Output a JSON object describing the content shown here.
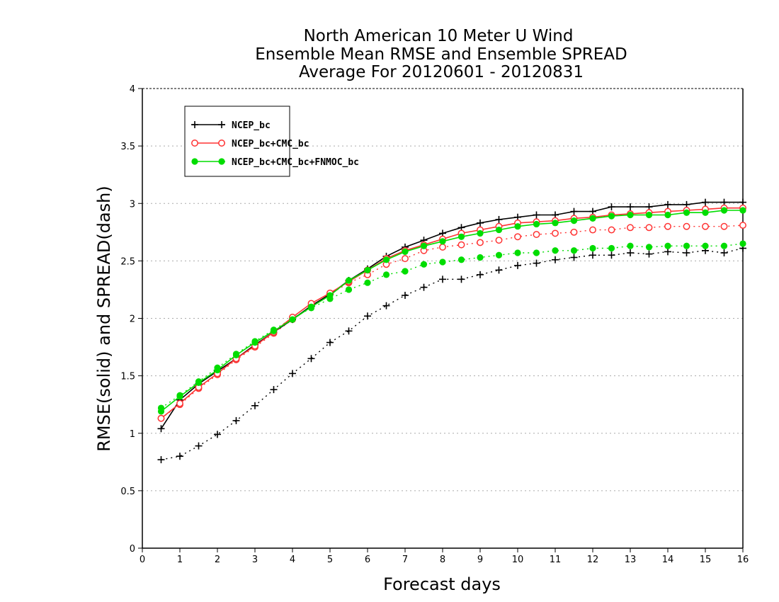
{
  "chart_data": {
    "type": "line",
    "title": {
      "line1": "North American 10 Meter U Wind",
      "line2": "Ensemble Mean RMSE and Ensemble SPREAD",
      "line3": "Average For 20120601 - 20120831"
    },
    "xlabel": "Forecast days",
    "ylabel": "RMSE(solid) and SPREAD(dash)",
    "xlim": [
      0,
      16
    ],
    "ylim": [
      0,
      4
    ],
    "xticks": [
      "0",
      "1",
      "2",
      "3",
      "4",
      "5",
      "6",
      "7",
      "8",
      "9",
      "10",
      "11",
      "12",
      "13",
      "14",
      "15",
      "16"
    ],
    "yticks": [
      "0",
      "0.5",
      "1",
      "1.5",
      "2",
      "2.5",
      "3",
      "3.5",
      "4"
    ],
    "grid": "horizontal dotted",
    "legend_placement": "top-left",
    "legend": [
      "NCEP_bc",
      "NCEP_bc+CMC_bc",
      "NCEP_bc+CMC_bc+FNMOC_bc"
    ],
    "x": [
      0.5,
      1,
      1.5,
      2,
      2.5,
      3,
      3.5,
      4,
      4.5,
      5,
      5.5,
      6,
      6.5,
      7,
      7.5,
      8,
      8.5,
      9,
      9.5,
      10,
      10.5,
      11,
      11.5,
      12,
      12.5,
      13,
      13.5,
      14,
      14.5,
      15,
      15.5,
      16
    ],
    "series": [
      {
        "name": "NCEP_bc",
        "metric": "RMSE",
        "style": "solid",
        "marker": "plus",
        "color": "#000000",
        "values": [
          1.04,
          1.29,
          1.43,
          1.54,
          1.65,
          1.77,
          1.88,
          1.99,
          2.11,
          2.21,
          2.33,
          2.43,
          2.54,
          2.62,
          2.68,
          2.74,
          2.79,
          2.83,
          2.86,
          2.88,
          2.9,
          2.9,
          2.93,
          2.93,
          2.97,
          2.97,
          2.97,
          2.99,
          2.99,
          3.01,
          3.01,
          3.01
        ]
      },
      {
        "name": "NCEP_bc+CMC_bc",
        "metric": "RMSE",
        "style": "solid",
        "marker": "open-circle",
        "color": "#ff3333",
        "values": [
          1.13,
          1.26,
          1.4,
          1.52,
          1.65,
          1.76,
          1.88,
          2.01,
          2.13,
          2.22,
          2.32,
          2.42,
          2.52,
          2.59,
          2.64,
          2.69,
          2.74,
          2.77,
          2.8,
          2.83,
          2.84,
          2.85,
          2.87,
          2.88,
          2.9,
          2.91,
          2.92,
          2.93,
          2.94,
          2.95,
          2.96,
          2.96
        ]
      },
      {
        "name": "NCEP_bc+CMC_bc+FNMOC_bc",
        "metric": "RMSE",
        "style": "solid",
        "marker": "filled-circle",
        "color": "#00dd00",
        "values": [
          1.19,
          1.32,
          1.44,
          1.55,
          1.68,
          1.79,
          1.89,
          1.99,
          2.1,
          2.2,
          2.33,
          2.42,
          2.51,
          2.58,
          2.63,
          2.67,
          2.71,
          2.74,
          2.77,
          2.8,
          2.82,
          2.83,
          2.85,
          2.87,
          2.89,
          2.9,
          2.9,
          2.9,
          2.92,
          2.92,
          2.94,
          2.94
        ]
      },
      {
        "name": "NCEP_bc",
        "metric": "SPREAD",
        "style": "dash",
        "marker": "plus",
        "color": "#000000",
        "values": [
          0.77,
          0.8,
          0.89,
          0.99,
          1.11,
          1.24,
          1.38,
          1.52,
          1.65,
          1.79,
          1.89,
          2.02,
          2.11,
          2.2,
          2.27,
          2.34,
          2.34,
          2.38,
          2.42,
          2.46,
          2.48,
          2.51,
          2.53,
          2.55,
          2.55,
          2.57,
          2.56,
          2.58,
          2.57,
          2.59,
          2.57,
          2.61
        ]
      },
      {
        "name": "NCEP_bc+CMC_bc",
        "metric": "SPREAD",
        "style": "dash",
        "marker": "open-circle",
        "color": "#ff3333",
        "values": [
          1.13,
          1.25,
          1.39,
          1.51,
          1.64,
          1.75,
          1.87,
          1.99,
          2.11,
          2.21,
          2.31,
          2.38,
          2.47,
          2.52,
          2.59,
          2.62,
          2.64,
          2.66,
          2.68,
          2.71,
          2.73,
          2.74,
          2.75,
          2.77,
          2.77,
          2.79,
          2.79,
          2.8,
          2.8,
          2.8,
          2.8,
          2.81
        ]
      },
      {
        "name": "NCEP_bc+CMC_bc+FNMOC_bc",
        "metric": "SPREAD",
        "style": "dash",
        "marker": "filled-circle",
        "color": "#00dd00",
        "values": [
          1.22,
          1.33,
          1.45,
          1.57,
          1.69,
          1.8,
          1.9,
          2.0,
          2.09,
          2.17,
          2.25,
          2.31,
          2.38,
          2.41,
          2.47,
          2.49,
          2.51,
          2.53,
          2.55,
          2.57,
          2.57,
          2.59,
          2.59,
          2.61,
          2.61,
          2.63,
          2.62,
          2.63,
          2.63,
          2.63,
          2.63,
          2.65
        ]
      }
    ]
  }
}
